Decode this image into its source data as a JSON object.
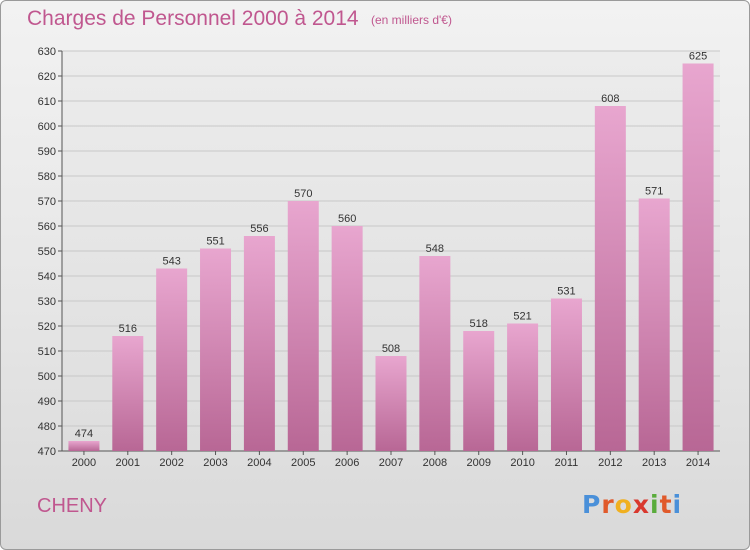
{
  "header": {
    "title": "Charges de Personnel 2000 à 2014",
    "subtitle": "(en milliers d'€)"
  },
  "footer": {
    "commune": "CHENY",
    "logo_text": "Proxiti"
  },
  "colors": {
    "title": "#c0578f",
    "bar_top": "#e8a6cf",
    "bar_bottom": "#b86795",
    "logo_letters": [
      "#4a90d9",
      "#e05a2b",
      "#f0b020",
      "#d9382e",
      "#5aac3c",
      "#e05a2b",
      "#4a90d9"
    ]
  },
  "chart_data": {
    "type": "bar",
    "categories": [
      "2000",
      "2001",
      "2002",
      "2003",
      "2004",
      "2005",
      "2006",
      "2007",
      "2008",
      "2009",
      "2010",
      "2011",
      "2012",
      "2013",
      "2014"
    ],
    "values": [
      474,
      516,
      543,
      551,
      556,
      570,
      560,
      508,
      548,
      518,
      521,
      531,
      608,
      571,
      625
    ],
    "title": "Charges de Personnel 2000 à 2014",
    "ylabel": "",
    "xlabel": "",
    "ylim": [
      470,
      630
    ],
    "yticks": [
      470,
      480,
      490,
      500,
      510,
      520,
      530,
      540,
      550,
      560,
      570,
      580,
      590,
      600,
      610,
      620,
      630
    ],
    "grid": true,
    "data_labels": true
  }
}
